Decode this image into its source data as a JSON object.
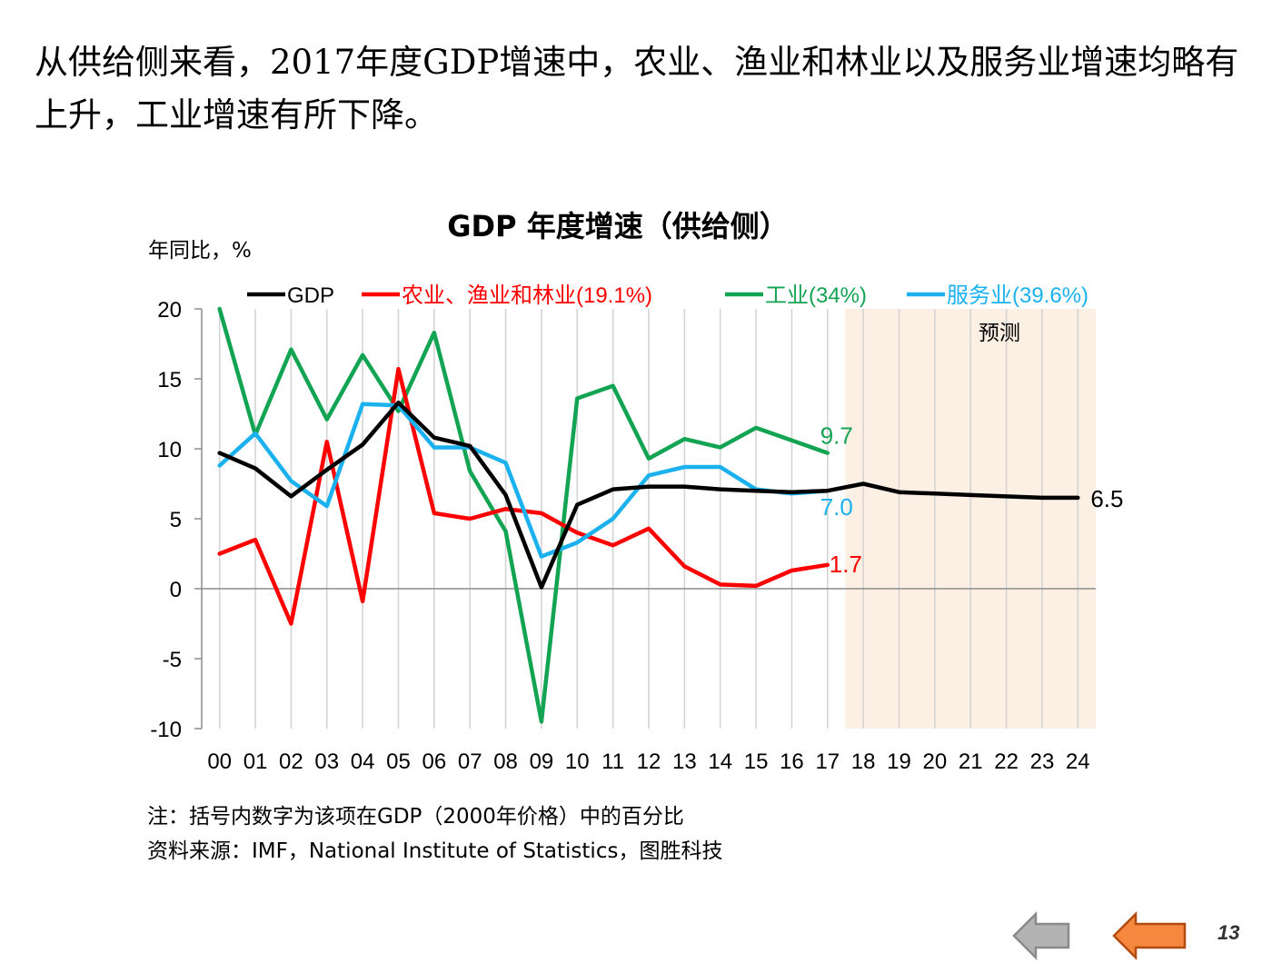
{
  "headline": "从供给侧来看，2017年度GDP增速中，农业、渔业和林业以及服务业增速均略有上升，工业增速有所下降。",
  "notes": {
    "note": "注：括号内数字为该项在GDP（2000年价格）中的百分比",
    "source": "资料来源：IMF，National Institute of Statistics，图胜科技"
  },
  "page_number": "13",
  "chart_data": {
    "type": "line",
    "title": "GDP 年度增速（供给侧）",
    "ylabel": "年同比，%",
    "xlabel": "",
    "ylim": [
      -10,
      20
    ],
    "yticks": [
      "20",
      "15",
      "10",
      "5",
      "0",
      "-5",
      "-10"
    ],
    "categories": [
      "00",
      "01",
      "02",
      "03",
      "04",
      "05",
      "06",
      "07",
      "08",
      "09",
      "10",
      "11",
      "12",
      "13",
      "14",
      "15",
      "16",
      "17",
      "18",
      "19",
      "20",
      "21",
      "22",
      "23",
      "24"
    ],
    "forecast_label": "预测",
    "forecast_start": "18",
    "forecast_color": "#fcefe3",
    "grid": "vertical",
    "legend_position": "top",
    "series": [
      {
        "name": "GDP",
        "color": "#000000",
        "values": [
          9.7,
          8.6,
          6.6,
          8.5,
          10.3,
          13.3,
          10.8,
          10.2,
          6.7,
          0.1,
          6.0,
          7.1,
          7.3,
          7.3,
          7.1,
          7.0,
          6.9,
          7.0,
          7.5,
          6.9,
          6.8,
          6.7,
          6.6,
          6.5,
          6.5
        ],
        "end_label": "6.5"
      },
      {
        "name": "农业、渔业和林业(19.1%)",
        "color": "#ff0000",
        "values": [
          2.5,
          3.5,
          -2.5,
          10.5,
          -0.9,
          15.7,
          5.4,
          5.0,
          5.7,
          5.4,
          4.0,
          3.1,
          4.3,
          1.6,
          0.3,
          0.2,
          1.3,
          1.7,
          null,
          null,
          null,
          null,
          null,
          null,
          null
        ],
        "end_label": "1.7"
      },
      {
        "name": "工业(34%)",
        "color": "#13a453",
        "values": [
          20.0,
          11.0,
          17.1,
          12.1,
          16.7,
          12.7,
          18.3,
          8.4,
          4.1,
          -9.5,
          13.6,
          14.5,
          9.3,
          10.7,
          10.1,
          11.5,
          10.6,
          9.7,
          null,
          null,
          null,
          null,
          null,
          null,
          null
        ],
        "end_label": "9.7"
      },
      {
        "name": "服务业(39.6%)",
        "color": "#1ab1ee",
        "values": [
          8.8,
          11.1,
          7.7,
          5.9,
          13.2,
          13.1,
          10.1,
          10.1,
          9.0,
          2.3,
          3.3,
          5.0,
          8.1,
          8.7,
          8.7,
          7.1,
          6.8,
          7.0,
          null,
          null,
          null,
          null,
          null,
          null,
          null
        ],
        "end_label": "7.0"
      }
    ]
  }
}
